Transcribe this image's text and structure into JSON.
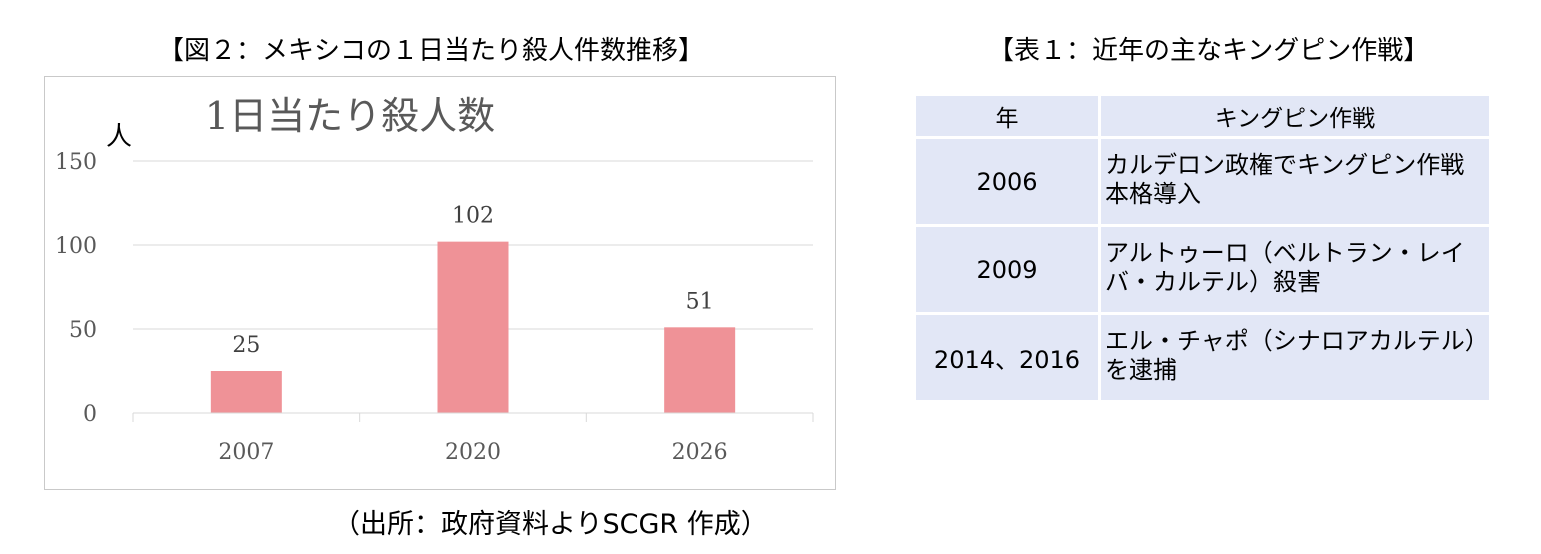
{
  "figure": {
    "title": "【図２：メキシコの１日当たり殺人件数推移】",
    "source": "（出所：政府資料よりSCGR 作成）"
  },
  "chart_data": {
    "type": "bar",
    "title": "1日当たり殺人数",
    "ylabel": "人",
    "xlabel": "",
    "categories": [
      "2007",
      "2020",
      "2026"
    ],
    "values": [
      25,
      102,
      51
    ],
    "data_labels": [
      "25",
      "102",
      "51"
    ],
    "ylim": [
      0,
      150
    ],
    "yticks": [
      "0",
      "50",
      "100",
      "150"
    ],
    "grid": true,
    "legend": "none",
    "bar_color": "#ef9297"
  },
  "table": {
    "title": "【表１：近年の主なキングピン作戦】",
    "headers": [
      "年",
      "キングピン作戦"
    ],
    "rows": [
      {
        "year": "2006",
        "event": "カルデロン政権でキングピン作戦本格導入"
      },
      {
        "year": "2009",
        "event": "アルトゥーロ（ベルトラン・レイバ・カルテル）殺害"
      },
      {
        "year": "2014、2016",
        "event": "エル・チャポ（シナロアカルテル）を逮捕"
      }
    ],
    "cell_color": "#e2e7f6"
  }
}
